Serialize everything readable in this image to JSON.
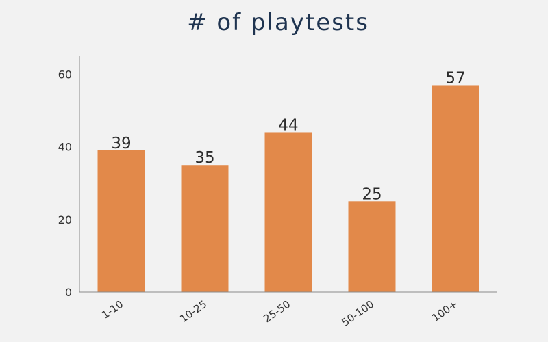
{
  "chart_data": {
    "type": "bar",
    "title": "# of playtests",
    "categories": [
      "1-10",
      "10-25",
      "25-50",
      "50-100",
      "100+"
    ],
    "values": [
      39,
      35,
      44,
      25,
      57
    ],
    "ylim": [
      0,
      65
    ],
    "yticks": [
      0,
      20,
      40,
      60
    ],
    "xlabel": "",
    "ylabel": "",
    "grid": false,
    "legend": "none",
    "bar_color": "#e2894a",
    "data_labels": true
  }
}
